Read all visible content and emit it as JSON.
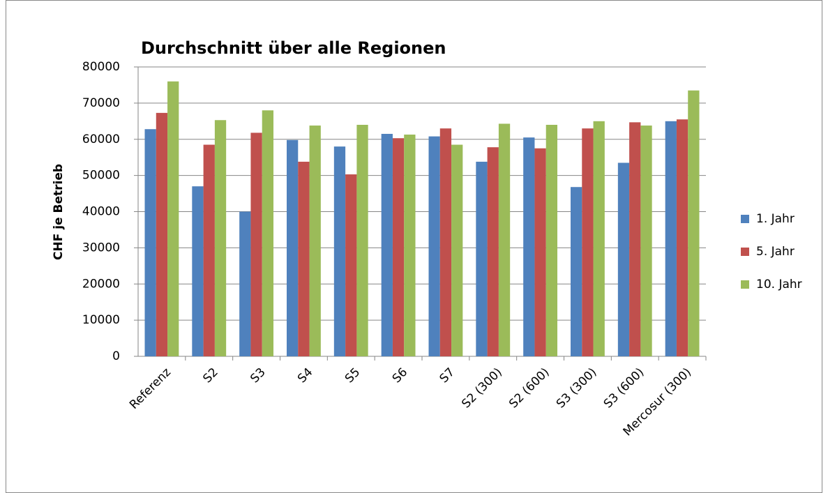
{
  "chart_data": {
    "type": "bar",
    "title": "Durchschnitt über alle Regionen",
    "y_label": "CHF je Betrieb",
    "categories": [
      "Referenz",
      "S2",
      "S3",
      "S4",
      "S5",
      "S6",
      "S7",
      "S2 (300)",
      "S2 (600)",
      "S3 (300)",
      "S3 (600)",
      "Mercosur (300)"
    ],
    "series": [
      {
        "name": "1. Jahr",
        "color": "#4f81bd",
        "values": [
          62800,
          47000,
          40000,
          59800,
          58000,
          61500,
          60800,
          53800,
          60500,
          46800,
          53500,
          65000
        ]
      },
      {
        "name": "5. Jahr",
        "color": "#c0504d",
        "values": [
          67300,
          58500,
          61800,
          53800,
          50300,
          60300,
          63000,
          57800,
          57500,
          63000,
          64700,
          65500
        ]
      },
      {
        "name": "10. Jahr",
        "color": "#9bbb59",
        "values": [
          76000,
          65300,
          68000,
          63800,
          64000,
          61300,
          58500,
          64300,
          64000,
          65000,
          63800,
          73500
        ]
      }
    ],
    "ylim": [
      0,
      80000
    ],
    "yticks": [
      0,
      10000,
      20000,
      30000,
      40000,
      50000,
      60000,
      70000,
      80000
    ],
    "grid": true,
    "legend": "right"
  }
}
